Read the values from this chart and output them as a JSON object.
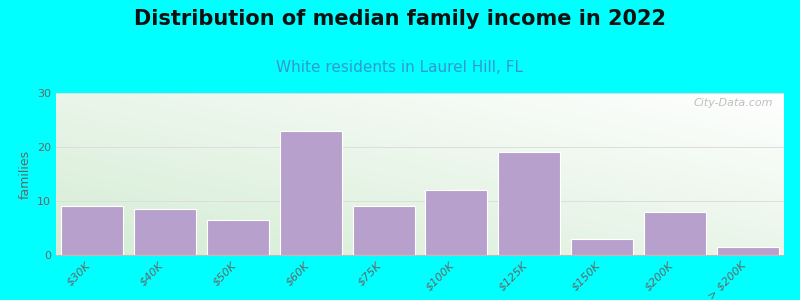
{
  "title": "Distribution of median family income in 2022",
  "subtitle": "White residents in Laurel Hill, FL",
  "ylabel": "families",
  "background_color": "#00FFFF",
  "bar_color": "#b8a0cc",
  "bar_edge_color": "#ffffff",
  "categories": [
    "$30K",
    "$40K",
    "$50K",
    "$60K",
    "$75K",
    "$100K",
    "$125K",
    "$150K",
    "$200K",
    "> $200K"
  ],
  "values": [
    9,
    8.5,
    6.5,
    23,
    9,
    12,
    19,
    3,
    8,
    1.5
  ],
  "ylim": [
    0,
    30
  ],
  "yticks": [
    0,
    10,
    20,
    30
  ],
  "watermark": "City-Data.com",
  "title_fontsize": 15,
  "subtitle_fontsize": 11,
  "subtitle_color": "#3399cc",
  "ylabel_fontsize": 9,
  "tick_label_fontsize": 8,
  "grad_top_left": "#d4ecd4",
  "grad_bottom_right": "#ffffff"
}
